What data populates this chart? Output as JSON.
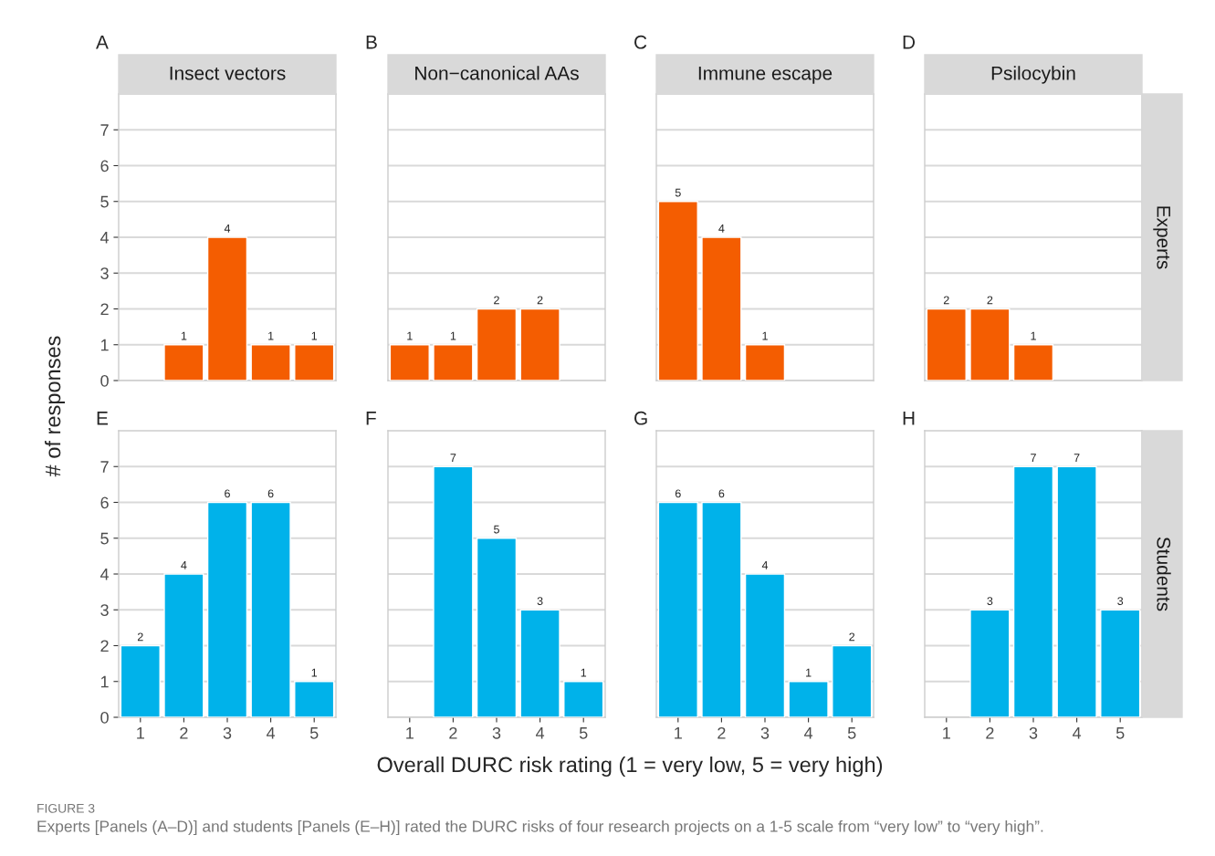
{
  "chart_data": [
    {
      "type": "bar",
      "title": "Insect vectors",
      "ylabel": "# of responses",
      "categories": [
        "1",
        "2",
        "3",
        "4",
        "5"
      ],
      "values": [
        null,
        1,
        4,
        1,
        1
      ],
      "color": "#f45d01",
      "ylim": [
        0,
        8
      ],
      "yticks": [
        0,
        1,
        2,
        3,
        4,
        5,
        6,
        7
      ],
      "grid": "y",
      "data_labels": true,
      "tick_labels": "y",
      "annotations": [
        "A"
      ]
    },
    {
      "type": "bar",
      "title": "Non−canonical AAs",
      "categories": [
        "1",
        "2",
        "3",
        "4",
        "5"
      ],
      "values": [
        1,
        1,
        2,
        2,
        null
      ],
      "color": "#f45d01",
      "ylim": [
        0,
        8
      ],
      "yticks": [
        0,
        1,
        2,
        3,
        4,
        5,
        6,
        7
      ],
      "grid": "y",
      "data_labels": true,
      "tick_labels": false,
      "annotations": [
        "B"
      ]
    },
    {
      "type": "bar",
      "title": "Immune escape",
      "categories": [
        "1",
        "2",
        "3",
        "4",
        "5"
      ],
      "values": [
        5,
        4,
        1,
        null,
        null
      ],
      "color": "#f45d01",
      "ylim": [
        0,
        8
      ],
      "yticks": [
        0,
        1,
        2,
        3,
        4,
        5,
        6,
        7
      ],
      "grid": "y",
      "data_labels": true,
      "tick_labels": false,
      "annotations": [
        "C"
      ]
    },
    {
      "type": "bar",
      "title": "Psilocybin",
      "categories": [
        "1",
        "2",
        "3",
        "4",
        "5"
      ],
      "values": [
        2,
        2,
        1,
        null,
        null
      ],
      "color": "#f45d01",
      "ylim": [
        0,
        8
      ],
      "yticks": [
        0,
        1,
        2,
        3,
        4,
        5,
        6,
        7
      ],
      "grid": "y",
      "data_labels": true,
      "tick_labels": false,
      "annotations": [
        "D",
        "Experts"
      ]
    },
    {
      "type": "bar",
      "xlabel": "Overall DURC risk rating (1 = very low, 5 = very high)",
      "categories": [
        "1",
        "2",
        "3",
        "4",
        "5"
      ],
      "values": [
        2,
        4,
        6,
        6,
        1
      ],
      "color": "#00b2ea",
      "ylim": [
        0,
        8
      ],
      "yticks": [
        0,
        1,
        2,
        3,
        4,
        5,
        6,
        7
      ],
      "grid": "y",
      "data_labels": true,
      "annotations": [
        "E"
      ]
    },
    {
      "type": "bar",
      "categories": [
        "1",
        "2",
        "3",
        "4",
        "5"
      ],
      "values": [
        null,
        7,
        5,
        3,
        1
      ],
      "color": "#00b2ea",
      "ylim": [
        0,
        8
      ],
      "yticks": [
        0,
        1,
        2,
        3,
        4,
        5,
        6,
        7
      ],
      "grid": "y",
      "data_labels": true,
      "tick_labels": "x",
      "annotations": [
        "F"
      ]
    },
    {
      "type": "bar",
      "categories": [
        "1",
        "2",
        "3",
        "4",
        "5"
      ],
      "values": [
        6,
        6,
        4,
        1,
        2
      ],
      "color": "#00b2ea",
      "ylim": [
        0,
        8
      ],
      "yticks": [
        0,
        1,
        2,
        3,
        4,
        5,
        6,
        7
      ],
      "grid": "y",
      "data_labels": true,
      "tick_labels": "x",
      "annotations": [
        "G"
      ]
    },
    {
      "type": "bar",
      "categories": [
        "1",
        "2",
        "3",
        "4",
        "5"
      ],
      "values": [
        null,
        3,
        7,
        7,
        3
      ],
      "color": "#00b2ea",
      "ylim": [
        0,
        8
      ],
      "yticks": [
        0,
        1,
        2,
        3,
        4,
        5,
        6,
        7
      ],
      "grid": "y",
      "data_labels": true,
      "tick_labels": "x",
      "annotations": [
        "H",
        "Students",
        "FIGURE 3",
        "Experts [Panels (A–D)] and students [Panels (E–H)] rated the DURC risks of four research projects on a 1-5 scale from “very low” to “very high”."
      ]
    }
  ]
}
